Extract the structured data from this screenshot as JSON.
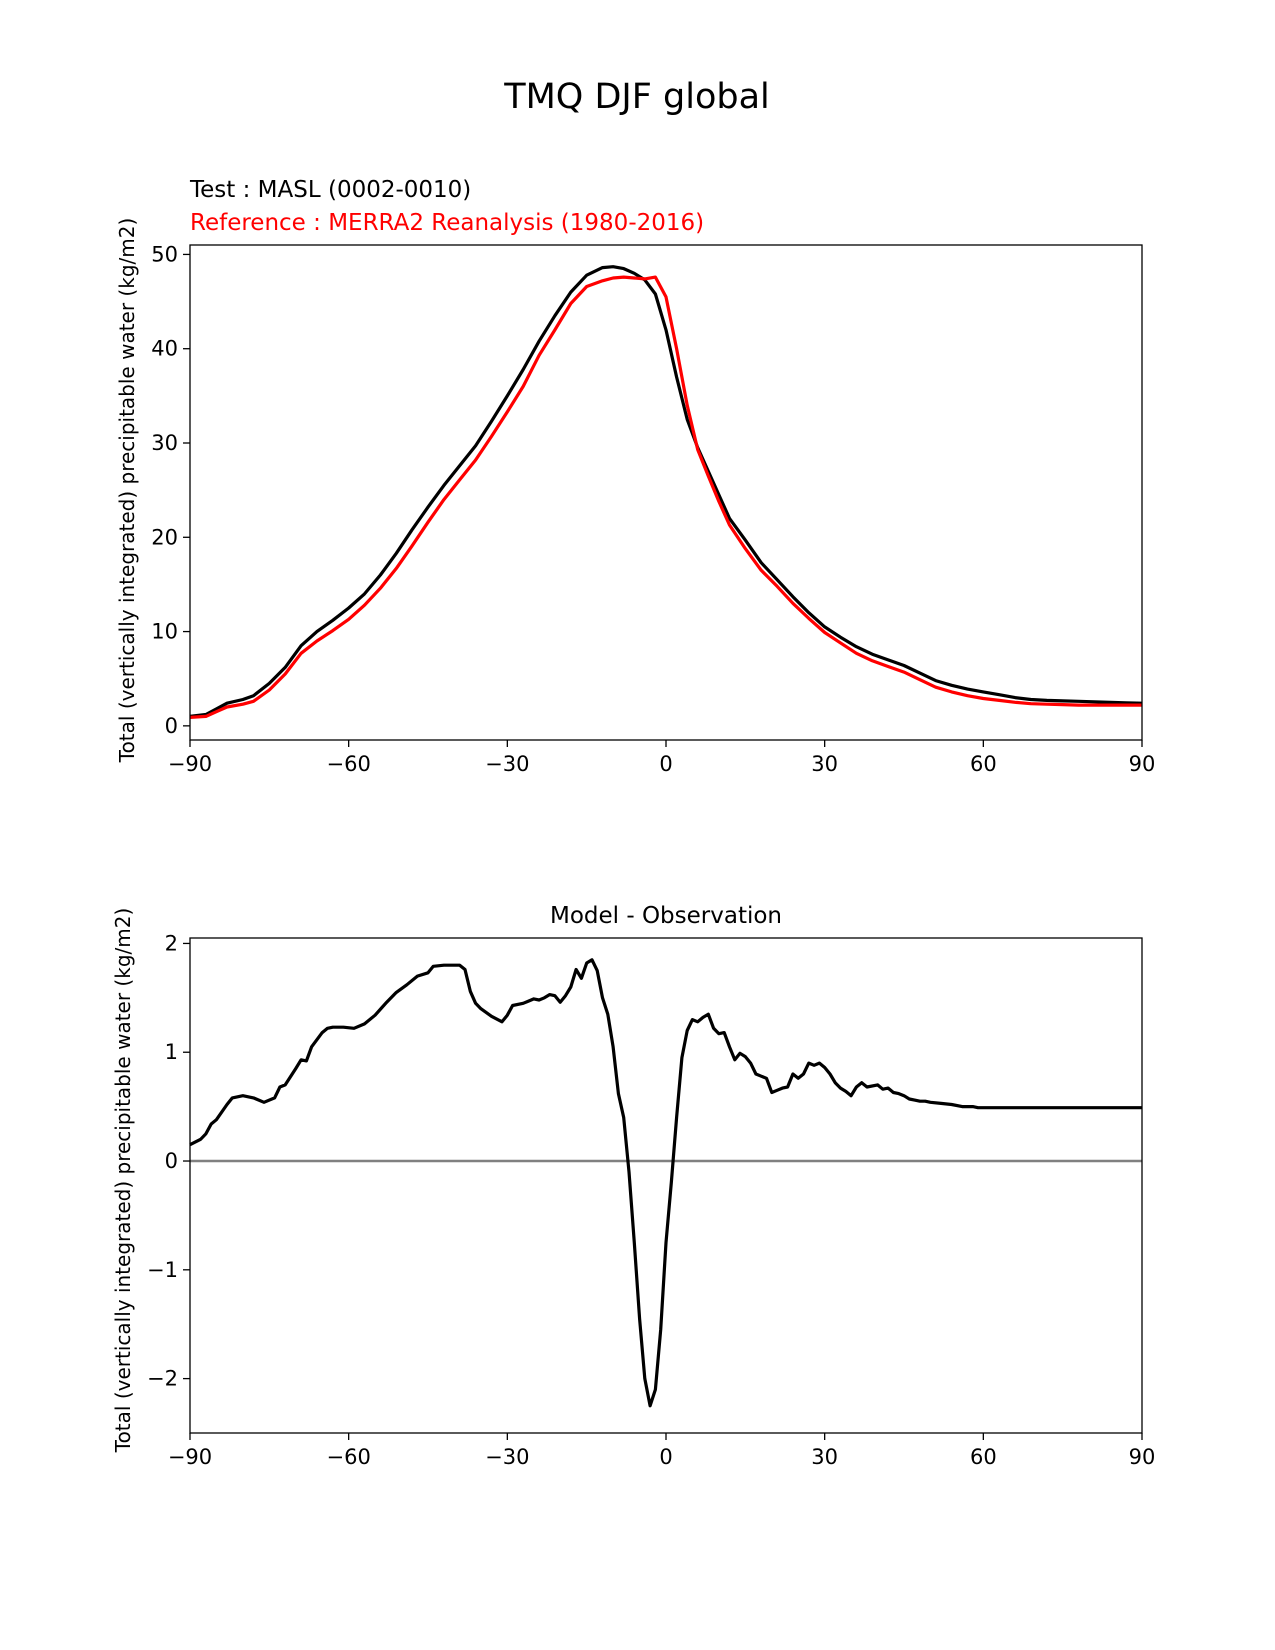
{
  "figure": {
    "title": "TMQ DJF global"
  },
  "chart_data": [
    {
      "type": "line",
      "test_label": "Test : MASL (0002-0010)",
      "reference_label": "Reference : MERRA2 Reanalysis (1980-2016)",
      "ylabel": "Total (vertically integrated) precipitable water (kg/m2)",
      "xlabel": "",
      "xlim": [
        -90,
        90
      ],
      "ylim": [
        -1.5,
        51
      ],
      "xticks": [
        "−90",
        "−60",
        "−30",
        "0",
        "30",
        "60",
        "90"
      ],
      "yticks": [
        "0",
        "10",
        "20",
        "30",
        "40",
        "50"
      ],
      "colors": {
        "test": "#000000",
        "reference": "#ff0000"
      },
      "series": [
        {
          "key": "test",
          "x": [
            -90,
            -87,
            -85,
            -83,
            -80,
            -78,
            -75,
            -72,
            -69,
            -66,
            -63,
            -60,
            -57,
            -54,
            -51,
            -48,
            -45,
            -42,
            -39,
            -36,
            -33,
            -30,
            -27,
            -24,
            -21,
            -18,
            -15,
            -12,
            -10,
            -8,
            -6,
            -4,
            -2,
            0,
            2,
            4,
            6,
            8,
            10,
            12,
            15,
            18,
            21,
            24,
            27,
            30,
            33,
            36,
            39,
            42,
            45,
            48,
            51,
            54,
            57,
            60,
            63,
            66,
            69,
            72,
            75,
            78,
            81,
            84,
            87,
            90
          ],
          "y": [
            1.0,
            1.2,
            1.8,
            2.4,
            2.8,
            3.2,
            4.5,
            6.2,
            8.5,
            10.0,
            11.2,
            12.5,
            14.0,
            16.0,
            18.3,
            20.8,
            23.2,
            25.5,
            27.6,
            29.7,
            32.3,
            35.0,
            37.8,
            40.8,
            43.5,
            46.0,
            47.8,
            48.6,
            48.7,
            48.5,
            48.0,
            47.3,
            45.8,
            42.0,
            37.0,
            32.5,
            29.5,
            27.0,
            24.5,
            22.0,
            19.7,
            17.3,
            15.5,
            13.7,
            12.0,
            10.5,
            9.4,
            8.4,
            7.6,
            7.0,
            6.4,
            5.6,
            4.8,
            4.3,
            3.9,
            3.6,
            3.3,
            3.0,
            2.8,
            2.7,
            2.65,
            2.6,
            2.55,
            2.5,
            2.45,
            2.4
          ]
        },
        {
          "key": "reference",
          "x": [
            -90,
            -87,
            -85,
            -83,
            -80,
            -78,
            -75,
            -72,
            -69,
            -66,
            -63,
            -60,
            -57,
            -54,
            -51,
            -48,
            -45,
            -42,
            -39,
            -36,
            -33,
            -30,
            -27,
            -24,
            -21,
            -18,
            -15,
            -12,
            -10,
            -8,
            -6,
            -4,
            -2,
            0,
            2,
            4,
            6,
            8,
            10,
            12,
            15,
            18,
            21,
            24,
            27,
            30,
            33,
            36,
            39,
            42,
            45,
            48,
            51,
            54,
            57,
            60,
            63,
            66,
            69,
            72,
            75,
            78,
            81,
            84,
            87,
            90
          ],
          "y": [
            0.9,
            1.0,
            1.5,
            2.0,
            2.3,
            2.6,
            3.8,
            5.5,
            7.7,
            9.0,
            10.1,
            11.3,
            12.8,
            14.6,
            16.7,
            19.1,
            21.6,
            24.0,
            26.1,
            28.2,
            30.7,
            33.3,
            36.0,
            39.3,
            42.0,
            44.8,
            46.6,
            47.2,
            47.5,
            47.6,
            47.5,
            47.4,
            47.6,
            45.5,
            40.0,
            34.0,
            29.3,
            26.5,
            23.8,
            21.3,
            18.8,
            16.5,
            14.8,
            13.0,
            11.4,
            9.9,
            8.8,
            7.7,
            6.9,
            6.3,
            5.7,
            4.9,
            4.1,
            3.6,
            3.2,
            2.9,
            2.7,
            2.5,
            2.35,
            2.3,
            2.25,
            2.2,
            2.2,
            2.2,
            2.2,
            2.2
          ]
        }
      ]
    },
    {
      "type": "line",
      "title": "Model - Observation",
      "ylabel": "Total (vertically integrated) precipitable water (kg/m2)",
      "xlabel": "",
      "xlim": [
        -90,
        90
      ],
      "ylim": [
        -2.5,
        2.05
      ],
      "xticks": [
        "−90",
        "−60",
        "−30",
        "0",
        "30",
        "60",
        "90"
      ],
      "yticks": [
        "−2",
        "−1",
        "0",
        "1",
        "2"
      ],
      "zero_line": {
        "value": 0,
        "color": "#808080"
      },
      "colors": {
        "diff": "#000000"
      },
      "series": [
        {
          "key": "diff",
          "x": [
            -90,
            -88,
            -87,
            -86,
            -85,
            -83,
            -82,
            -80,
            -78,
            -76,
            -74,
            -73,
            -72,
            -70,
            -69,
            -68,
            -67,
            -65,
            -64,
            -63,
            -61,
            -59,
            -57,
            -55,
            -53,
            -51,
            -49,
            -47,
            -45,
            -44,
            -42,
            -41,
            -39,
            -38,
            -37,
            -36,
            -35,
            -33,
            -31,
            -30,
            -29,
            -27,
            -26,
            -25,
            -24,
            -23,
            -22,
            -21,
            -20,
            -19,
            -18,
            -17,
            -16,
            -15,
            -14,
            -13,
            -12,
            -11,
            -10,
            -9,
            -8,
            -7,
            -6,
            -5,
            -4,
            -3,
            -2,
            -1,
            0,
            1,
            2,
            3,
            4,
            5,
            6,
            7,
            8,
            9,
            10,
            11,
            12,
            13,
            14,
            15,
            16,
            17,
            18,
            19,
            20,
            21,
            22,
            23,
            24,
            25,
            26,
            27,
            28,
            29,
            30,
            31,
            32,
            33,
            34,
            35,
            36,
            37,
            38,
            40,
            41,
            42,
            43,
            44,
            45,
            46,
            47,
            48,
            49,
            50,
            52,
            54,
            56,
            58,
            59,
            60,
            61,
            62,
            63,
            64,
            65,
            66,
            67,
            68,
            69,
            70,
            72,
            74,
            76,
            78,
            80,
            82,
            84,
            86,
            88,
            89,
            90
          ],
          "y": [
            0.15,
            0.2,
            0.25,
            0.34,
            0.38,
            0.52,
            0.58,
            0.6,
            0.58,
            0.54,
            0.58,
            0.68,
            0.7,
            0.85,
            0.93,
            0.92,
            1.05,
            1.18,
            1.22,
            1.23,
            1.23,
            1.22,
            1.26,
            1.34,
            1.45,
            1.55,
            1.62,
            1.7,
            1.73,
            1.79,
            1.8,
            1.8,
            1.8,
            1.76,
            1.56,
            1.45,
            1.4,
            1.33,
            1.28,
            1.34,
            1.43,
            1.45,
            1.47,
            1.49,
            1.48,
            1.5,
            1.53,
            1.52,
            1.46,
            1.52,
            1.6,
            1.76,
            1.68,
            1.82,
            1.85,
            1.75,
            1.5,
            1.35,
            1.05,
            0.62,
            0.4,
            -0.1,
            -0.75,
            -1.45,
            -2.0,
            -2.25,
            -2.1,
            -1.55,
            -0.75,
            -0.2,
            0.4,
            0.95,
            1.2,
            1.3,
            1.28,
            1.32,
            1.35,
            1.22,
            1.17,
            1.18,
            1.05,
            0.93,
            0.99,
            0.96,
            0.9,
            0.8,
            0.78,
            0.76,
            0.63,
            0.65,
            0.67,
            0.68,
            0.8,
            0.76,
            0.8,
            0.9,
            0.88,
            0.9,
            0.86,
            0.8,
            0.72,
            0.67,
            0.64,
            0.6,
            0.68,
            0.72,
            0.68,
            0.7,
            0.66,
            0.67,
            0.63,
            0.62,
            0.6,
            0.57,
            0.56,
            0.55,
            0.55,
            0.54,
            0.53,
            0.52,
            0.5,
            0.5,
            0.49,
            0.49,
            0.49,
            0.49,
            0.49,
            0.49,
            0.49,
            0.49,
            0.49,
            0.49,
            0.49,
            0.49,
            0.49,
            0.49,
            0.49,
            0.49,
            0.49,
            0.49,
            0.49,
            0.49,
            0.49,
            0.49,
            0.49
          ]
        }
      ]
    }
  ]
}
